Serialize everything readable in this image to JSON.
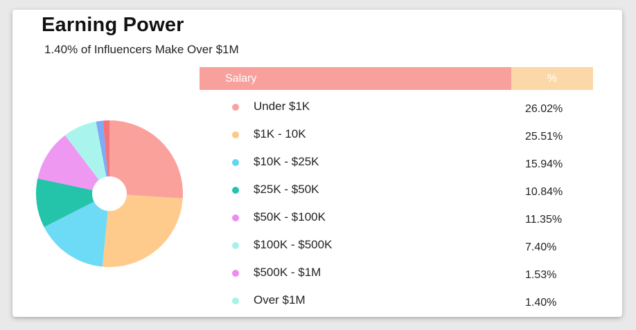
{
  "header": {
    "title": "Earning Power",
    "subtitle": "1.40% of Influencers Make Over $1M"
  },
  "table": {
    "col_salary": "Salary",
    "col_percent": "%",
    "header_colors": {
      "salary": "#f8a19c",
      "percent": "#fcd8a8"
    }
  },
  "chart_data": {
    "type": "pie",
    "title": "Earning Power",
    "subtitle": "1.40% of Influencers Make Over $1M",
    "donut": true,
    "categories": [
      "Under $1K",
      "$1K - 10K",
      "$10K - $25K",
      "$25K - $50K",
      "$50K - $100K",
      "$100K - $500K",
      "$500K - $1M",
      "Over $1M"
    ],
    "values": [
      26.02,
      25.51,
      15.94,
      10.84,
      11.35,
      7.4,
      1.53,
      1.4
    ],
    "labels": [
      "26.02%",
      "25.51%",
      "15.94%",
      "10.84%",
      "11.35%",
      "7.40%",
      "1.53%",
      "1.40%"
    ],
    "legend_colors": [
      "#f7a29c",
      "#fdc98a",
      "#5fd6f2",
      "#22c3ad",
      "#ec8cf0",
      "#a6f2ea",
      "#ec8cf0",
      "#a6f2ea"
    ],
    "slice_colors": [
      "#fba19c",
      "#fecb8c",
      "#6ddaf6",
      "#23c4aa",
      "#ee98f2",
      "#a9f5ed",
      "#7faaf5",
      "#f2747a"
    ]
  }
}
